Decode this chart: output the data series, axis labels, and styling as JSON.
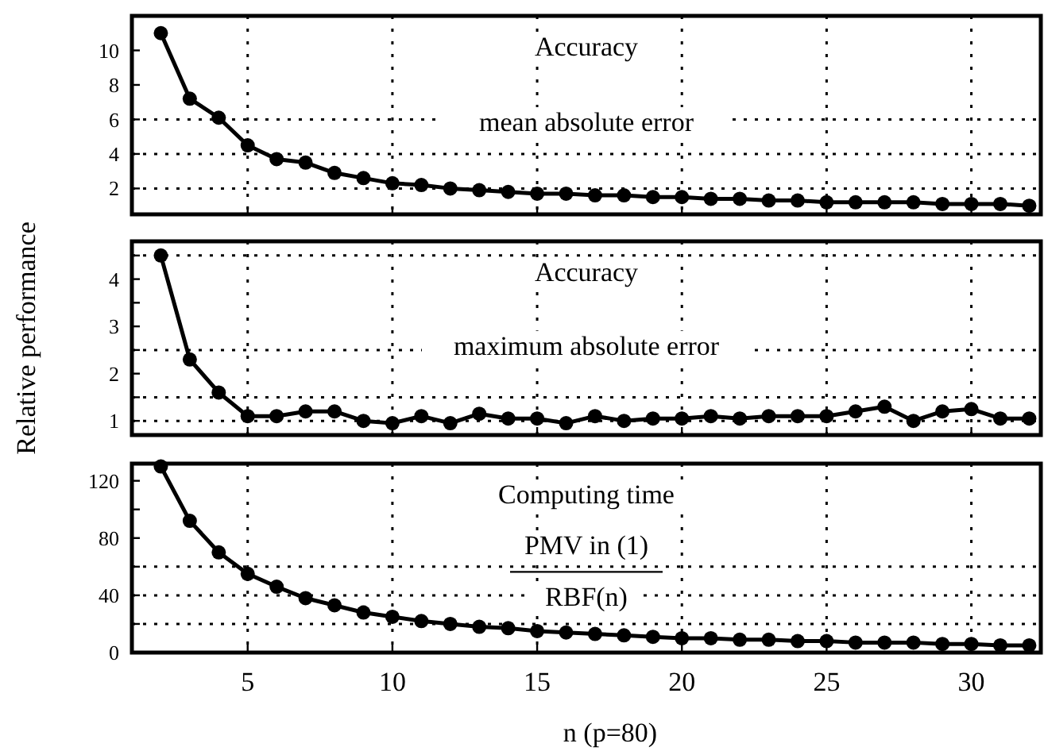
{
  "chart_data": [
    {
      "type": "line",
      "annotations": [
        "Accuracy",
        "mean absolute error"
      ],
      "x": [
        2,
        3,
        4,
        5,
        6,
        7,
        8,
        9,
        10,
        11,
        12,
        13,
        14,
        15,
        16,
        17,
        18,
        19,
        20,
        21,
        22,
        23,
        24,
        25,
        26,
        27,
        28,
        29,
        30,
        31,
        32
      ],
      "series": [
        {
          "color": "#000000",
          "values": [
            11,
            7.2,
            6.1,
            4.5,
            3.7,
            3.5,
            2.9,
            2.6,
            2.3,
            2.2,
            2.0,
            1.9,
            1.8,
            1.7,
            1.7,
            1.6,
            1.6,
            1.5,
            1.5,
            1.4,
            1.4,
            1.3,
            1.3,
            1.2,
            1.2,
            1.2,
            1.2,
            1.1,
            1.1,
            1.1,
            1.0
          ]
        }
      ],
      "xlim": [
        1,
        32.4
      ],
      "xticks": [
        5,
        10,
        15,
        20,
        25,
        30
      ],
      "ylim": [
        0.5,
        12
      ],
      "yticks": [
        2,
        4,
        6,
        8,
        10
      ],
      "grid": "x",
      "marker": "circle",
      "line_style": "solid",
      "tick_labels": "y",
      "ref_lines": [
        {
          "axis": "y",
          "value": 2,
          "line_style": "dotted"
        },
        {
          "axis": "y",
          "value": 4,
          "line_style": "dotted"
        },
        {
          "axis": "y",
          "value": 6,
          "line_style": "dotted"
        }
      ]
    },
    {
      "type": "line",
      "ylabel": "Relative performance",
      "annotations": [
        "Accuracy",
        "maximum absolute error"
      ],
      "x": [
        2,
        3,
        4,
        5,
        6,
        7,
        8,
        9,
        10,
        11,
        12,
        13,
        14,
        15,
        16,
        17,
        18,
        19,
        20,
        21,
        22,
        23,
        24,
        25,
        26,
        27,
        28,
        29,
        30,
        31,
        32
      ],
      "series": [
        {
          "color": "#000000",
          "values": [
            4.5,
            2.3,
            1.6,
            1.1,
            1.1,
            1.2,
            1.2,
            1.0,
            0.95,
            1.1,
            0.95,
            1.15,
            1.05,
            1.05,
            0.95,
            1.1,
            1.0,
            1.05,
            1.05,
            1.1,
            1.05,
            1.1,
            1.1,
            1.1,
            1.2,
            1.3,
            1.0,
            1.2,
            1.25,
            1.05,
            1.05
          ]
        }
      ],
      "xlim": [
        1,
        32.4
      ],
      "xticks": [
        5,
        10,
        15,
        20,
        25,
        30
      ],
      "ylim": [
        0.7,
        4.8
      ],
      "yticks": [
        1,
        {
          "value": 1.5,
          "label": null
        },
        2,
        {
          "value": 2.5,
          "label": null
        },
        3,
        {
          "value": 3.5,
          "label": null
        },
        4,
        {
          "value": 4.5,
          "label": null
        }
      ],
      "grid": "x",
      "marker": "circle",
      "line_style": "solid",
      "tick_labels": "y",
      "ref_lines": [
        {
          "axis": "y",
          "value": 1,
          "line_style": "dotted"
        },
        {
          "axis": "y",
          "value": 1.5,
          "line_style": "dotted"
        },
        {
          "axis": "y",
          "value": 2.5,
          "line_style": "dotted"
        },
        {
          "axis": "y",
          "value": 4.5,
          "line_style": "dotted"
        }
      ]
    },
    {
      "type": "line",
      "xlabel": "n (p=80)",
      "annotations": [
        "Computing time",
        "PMV in (1)",
        "RBF(n)"
      ],
      "x": [
        2,
        3,
        4,
        5,
        6,
        7,
        8,
        9,
        10,
        11,
        12,
        13,
        14,
        15,
        16,
        17,
        18,
        19,
        20,
        21,
        22,
        23,
        24,
        25,
        26,
        27,
        28,
        29,
        30,
        31,
        32
      ],
      "series": [
        {
          "color": "#000000",
          "values": [
            130,
            92,
            70,
            55,
            46,
            38,
            33,
            28,
            25,
            22,
            20,
            18,
            17,
            15,
            14,
            13,
            12,
            11,
            10,
            10,
            9,
            9,
            8,
            8,
            7,
            7,
            7,
            6,
            6,
            5,
            5
          ]
        }
      ],
      "xlim": [
        1,
        32.4
      ],
      "xticks": [
        5,
        10,
        15,
        20,
        25,
        30
      ],
      "ylim": [
        0,
        132
      ],
      "yticks": [
        0,
        {
          "value": 20,
          "label": null
        },
        40,
        {
          "value": 60,
          "label": null
        },
        80,
        {
          "value": 100,
          "label": null
        },
        120
      ],
      "grid": "x",
      "marker": "circle",
      "line_style": "solid",
      "ref_lines": [
        {
          "axis": "y",
          "value": 20,
          "line_style": "dotted"
        },
        {
          "axis": "y",
          "value": 40,
          "line_style": "dotted"
        },
        {
          "axis": "y",
          "value": 60,
          "line_style": "dotted"
        }
      ]
    }
  ]
}
